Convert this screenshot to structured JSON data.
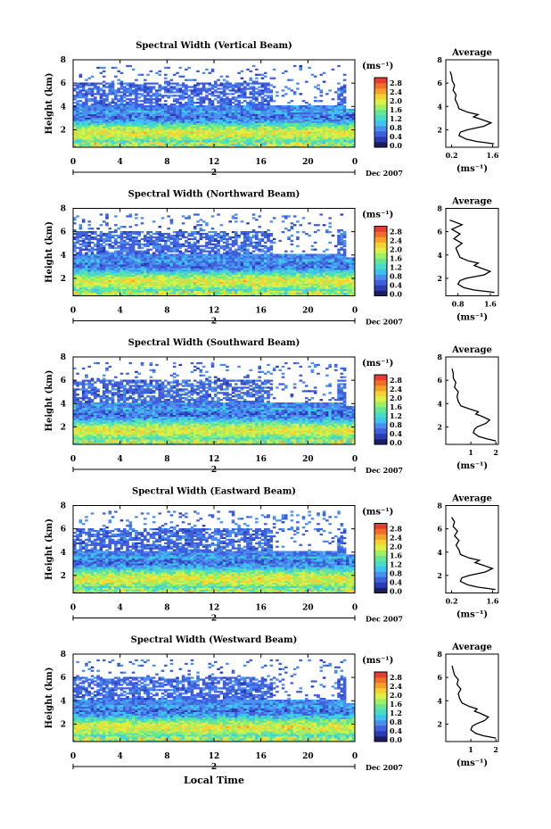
{
  "figure": {
    "x_axis_title": "Local Time",
    "date_label": "Dec 2007",
    "day_label": "2"
  },
  "chart_data": [
    {
      "type": "heatmap",
      "title": "Spectral Width (Vertical Beam)",
      "ylabel": "Height (km)",
      "xlabel": "Local Time",
      "xlim": [
        0,
        24
      ],
      "ylim": [
        0.5,
        8
      ],
      "x_ticks": [
        "0",
        "4",
        "8",
        "12",
        "16",
        "20",
        "0"
      ],
      "y_ticks": [
        "2",
        "4",
        "6",
        "8"
      ],
      "colorbar": {
        "unit": "(ms⁻¹)",
        "ticks": [
          "0.0",
          "0.4",
          "0.8",
          "1.2",
          "1.6",
          "2.0",
          "2.4",
          "2.8"
        ],
        "range": [
          0,
          2.9
        ]
      },
      "profile": {
        "type": "line",
        "title": "Average",
        "xlabel": "(ms⁻¹)",
        "x_ticks": [
          "0.2",
          "1.6"
        ],
        "xlim": [
          0,
          1.8
        ],
        "ylim": [
          0.5,
          8
        ],
        "heights": [
          0.8,
          1.0,
          1.2,
          1.5,
          1.8,
          2.0,
          2.3,
          2.6,
          2.9,
          3.1,
          3.3,
          3.5,
          3.8,
          4.2,
          4.6,
          5.0,
          5.4,
          5.8,
          6.2,
          6.6,
          7.0
        ],
        "values": [
          1.65,
          1.05,
          0.7,
          0.45,
          0.5,
          0.75,
          1.3,
          1.55,
          1.2,
          0.95,
          1.1,
          0.75,
          0.45,
          0.4,
          0.32,
          0.35,
          0.25,
          0.3,
          0.22,
          0.2,
          0.15
        ]
      }
    },
    {
      "type": "heatmap",
      "title": "Spectral Width (Northward Beam)",
      "ylabel": "Height (km)",
      "xlabel": "Local Time",
      "xlim": [
        0,
        24
      ],
      "ylim": [
        0.5,
        8
      ],
      "x_ticks": [
        "0",
        "4",
        "8",
        "12",
        "16",
        "20",
        "0"
      ],
      "y_ticks": [
        "2",
        "4",
        "6",
        "8"
      ],
      "colorbar": {
        "unit": "(ms⁻¹)",
        "ticks": [
          "0.0",
          "0.4",
          "0.8",
          "1.2",
          "1.6",
          "2.0",
          "2.4",
          "2.8"
        ],
        "range": [
          0,
          2.9
        ]
      },
      "profile": {
        "type": "line",
        "title": "Average",
        "xlabel": "(ms⁻¹)",
        "x_ticks": [
          "0.8",
          "1.6"
        ],
        "xlim": [
          0.5,
          1.8
        ],
        "ylim": [
          0.5,
          8
        ],
        "heights": [
          0.8,
          1.0,
          1.2,
          1.5,
          1.8,
          2.0,
          2.3,
          2.6,
          2.9,
          3.1,
          3.3,
          3.5,
          3.8,
          4.2,
          4.6,
          5.0,
          5.4,
          5.8,
          6.2,
          6.6,
          7.0
        ],
        "values": [
          1.7,
          1.2,
          0.95,
          0.8,
          0.85,
          1.0,
          1.45,
          1.6,
          1.35,
          1.2,
          1.3,
          1.05,
          0.85,
          0.8,
          0.75,
          0.9,
          0.7,
          0.85,
          0.65,
          0.9,
          0.6
        ]
      }
    },
    {
      "type": "heatmap",
      "title": "Spectral Width (Southward Beam)",
      "ylabel": "Height (km)",
      "xlabel": "Local Time",
      "xlim": [
        0,
        24
      ],
      "ylim": [
        0.5,
        8
      ],
      "x_ticks": [
        "0",
        "4",
        "8",
        "12",
        "16",
        "20",
        "0"
      ],
      "y_ticks": [
        "2",
        "4",
        "6",
        "8"
      ],
      "colorbar": {
        "unit": "(ms⁻¹)",
        "ticks": [
          "0.0",
          "0.4",
          "0.8",
          "1.2",
          "1.6",
          "2.0",
          "2.4",
          "2.8"
        ],
        "range": [
          0,
          2.9
        ]
      },
      "profile": {
        "type": "line",
        "title": "Average",
        "xlabel": "(ms⁻¹)",
        "x_ticks": [
          "1",
          "2"
        ],
        "xlim": [
          0,
          2.1
        ],
        "ylim": [
          0.5,
          8
        ],
        "heights": [
          0.8,
          1.0,
          1.2,
          1.5,
          1.8,
          2.0,
          2.3,
          2.6,
          2.9,
          3.1,
          3.3,
          3.5,
          3.8,
          4.2,
          4.6,
          5.0,
          5.4,
          5.8,
          6.2,
          6.6,
          7.0
        ],
        "values": [
          2.0,
          1.6,
          1.3,
          1.1,
          1.15,
          1.25,
          1.6,
          1.75,
          1.45,
          1.2,
          1.3,
          1.0,
          0.6,
          0.5,
          0.45,
          0.5,
          0.35,
          0.4,
          0.3,
          0.3,
          0.25
        ]
      }
    },
    {
      "type": "heatmap",
      "title": "Spectral Width (Eastward Beam)",
      "ylabel": "Height (km)",
      "xlabel": "Local Time",
      "xlim": [
        0,
        24
      ],
      "ylim": [
        0.5,
        8
      ],
      "x_ticks": [
        "0",
        "4",
        "8",
        "12",
        "16",
        "20",
        "0"
      ],
      "y_ticks": [
        "2",
        "4",
        "6",
        "8"
      ],
      "colorbar": {
        "unit": "(ms⁻¹)",
        "ticks": [
          "0.0",
          "0.4",
          "0.8",
          "1.2",
          "1.6",
          "2.0",
          "2.4",
          "2.8"
        ],
        "range": [
          0,
          2.9
        ]
      },
      "profile": {
        "type": "line",
        "title": "Average",
        "xlabel": "(ms⁻¹)",
        "x_ticks": [
          "0.2",
          "1.6"
        ],
        "xlim": [
          0,
          1.8
        ],
        "ylim": [
          0.5,
          8
        ],
        "heights": [
          0.8,
          1.0,
          1.2,
          1.5,
          1.8,
          2.0,
          2.3,
          2.6,
          2.9,
          3.1,
          3.3,
          3.5,
          3.8,
          4.2,
          4.6,
          5.0,
          5.4,
          5.8,
          6.2,
          6.6,
          7.0
        ],
        "values": [
          1.7,
          1.1,
          0.75,
          0.5,
          0.55,
          0.8,
          1.35,
          1.6,
          1.25,
          1.0,
          1.15,
          0.8,
          0.5,
          0.45,
          0.35,
          0.45,
          0.3,
          0.4,
          0.25,
          0.3,
          0.2
        ]
      }
    },
    {
      "type": "heatmap",
      "title": "Spectral Width (Westward Beam)",
      "ylabel": "Height (km)",
      "xlabel": "Local Time",
      "xlim": [
        0,
        24
      ],
      "ylim": [
        0.5,
        8
      ],
      "x_ticks": [
        "0",
        "4",
        "8",
        "12",
        "16",
        "20",
        "0"
      ],
      "y_ticks": [
        "2",
        "4",
        "6",
        "8"
      ],
      "colorbar": {
        "unit": "(ms⁻¹)",
        "ticks": [
          "0.0",
          "0.4",
          "0.8",
          "1.2",
          "1.6",
          "2.0",
          "2.4",
          "2.8"
        ],
        "range": [
          0,
          2.9
        ]
      },
      "profile": {
        "type": "line",
        "title": "Average",
        "xlabel": "(ms⁻¹)",
        "x_ticks": [
          "1",
          "2"
        ],
        "xlim": [
          0,
          2.1
        ],
        "ylim": [
          0.5,
          8
        ],
        "heights": [
          0.8,
          1.0,
          1.2,
          1.5,
          1.8,
          2.0,
          2.3,
          2.6,
          2.9,
          3.1,
          3.3,
          3.5,
          3.8,
          4.2,
          4.6,
          5.0,
          5.4,
          5.8,
          6.2,
          6.6,
          7.0
        ],
        "values": [
          2.0,
          1.5,
          1.2,
          1.0,
          1.05,
          1.2,
          1.55,
          1.7,
          1.4,
          1.15,
          1.25,
          0.95,
          0.65,
          0.55,
          0.5,
          0.6,
          0.45,
          0.5,
          0.35,
          0.3,
          0.25
        ]
      }
    }
  ],
  "colorscale": [
    "#1c1c64",
    "#2a3cb4",
    "#3f5fdc",
    "#4a8ff0",
    "#3cc3f0",
    "#46dcc8",
    "#64e696",
    "#a0f064",
    "#dcf046",
    "#f5d232",
    "#f5a028",
    "#f06e28",
    "#e63c32"
  ]
}
